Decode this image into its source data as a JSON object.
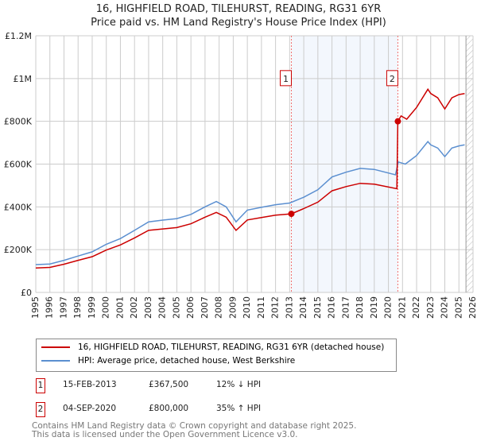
{
  "chart_data": {
    "type": "line",
    "title": "16, HIGHFIELD ROAD, TILEHURST, READING, RG31 6YR",
    "subtitle": "Price paid vs. HM Land Registry's House Price Index (HPI)",
    "xlim": [
      1995,
      2026
    ],
    "ylim": [
      0,
      1200000
    ],
    "x_ticks": [
      "1995",
      "1996",
      "1997",
      "1998",
      "1999",
      "2000",
      "2001",
      "2002",
      "2003",
      "2004",
      "2005",
      "2006",
      "2007",
      "2008",
      "2009",
      "2010",
      "2011",
      "2012",
      "2013",
      "2014",
      "2015",
      "2016",
      "2017",
      "2018",
      "2019",
      "2020",
      "2021",
      "2022",
      "2023",
      "2024",
      "2025",
      "2026"
    ],
    "y_ticks": [
      {
        "v": 0,
        "label": "£0"
      },
      {
        "v": 200000,
        "label": "£200K"
      },
      {
        "v": 400000,
        "label": "£400K"
      },
      {
        "v": 600000,
        "label": "£600K"
      },
      {
        "v": 800000,
        "label": "£800K"
      },
      {
        "v": 1000000,
        "label": "£1M"
      },
      {
        "v": 1200000,
        "label": "£1.2M"
      }
    ],
    "grid": true,
    "series": [
      {
        "name": "HPI: Average price, detached house, West Berkshire",
        "color": "#5b8fd0",
        "x": [
          1995,
          1996,
          1997,
          1998,
          1999,
          2000,
          2001,
          2002,
          2003,
          2004,
          2005,
          2006,
          2007,
          2007.8,
          2008.5,
          2009.2,
          2010,
          2011,
          2012,
          2013,
          2014,
          2015,
          2016,
          2017,
          2018,
          2019,
          2020.5,
          2020.7,
          2021.2,
          2022,
          2022.8,
          2023,
          2023.5,
          2024,
          2024.5,
          2025,
          2025.4
        ],
        "y": [
          130000,
          133000,
          150000,
          170000,
          190000,
          225000,
          252000,
          290000,
          330000,
          338000,
          345000,
          365000,
          400000,
          425000,
          400000,
          330000,
          385000,
          398000,
          410000,
          418000,
          445000,
          480000,
          540000,
          562000,
          580000,
          575000,
          550000,
          610000,
          600000,
          640000,
          705000,
          690000,
          675000,
          635000,
          675000,
          685000,
          690000
        ]
      },
      {
        "name": "16, HIGHFIELD ROAD, TILEHURST, READING, RG31 6YR (detached house)",
        "color": "#cc0000",
        "x": [
          1995,
          1996,
          1997,
          1998,
          1999,
          2000,
          2001,
          2002,
          2003,
          2004,
          2005,
          2006,
          2007,
          2007.8,
          2008.5,
          2009.2,
          2010,
          2011,
          2012,
          2013.12,
          2014,
          2015,
          2016,
          2017,
          2018,
          2019,
          2020.6,
          2020.67,
          2020.9,
          2021.3,
          2022,
          2022.8,
          2023,
          2023.5,
          2024,
          2024.5,
          2025,
          2025.4
        ],
        "y": [
          114000,
          117000,
          132000,
          150000,
          167000,
          198000,
          222000,
          255000,
          290000,
          297000,
          303000,
          321000,
          352000,
          374000,
          352000,
          290000,
          339000,
          350000,
          361000,
          367500,
          392000,
          422000,
          475000,
          495000,
          510000,
          506000,
          485000,
          800000,
          825000,
          810000,
          865000,
          950000,
          930000,
          910000,
          858000,
          910000,
          925000,
          930000
        ]
      }
    ],
    "sales": [
      {
        "n": "1",
        "x": 2013.12,
        "y": 367500
      },
      {
        "n": "2",
        "x": 2020.67,
        "y": 800000
      }
    ],
    "shaded_range": [
      2013.12,
      2020.67
    ],
    "future_hatch_from": 2025.5
  },
  "legend": {
    "red": "16, HIGHFIELD ROAD, TILEHURST, READING, RG31 6YR (detached house)",
    "blue": "HPI: Average price, detached house, West Berkshire"
  },
  "transactions": [
    {
      "n": "1",
      "date": "15-FEB-2013",
      "price": "£367,500",
      "hpi": "12% ↓ HPI"
    },
    {
      "n": "2",
      "date": "04-SEP-2020",
      "price": "£800,000",
      "hpi": "35% ↑ HPI"
    }
  ],
  "footer": {
    "line1": "Contains HM Land Registry data © Crown copyright and database right 2025.",
    "line2": "This data is licensed under the Open Government Licence v3.0."
  }
}
